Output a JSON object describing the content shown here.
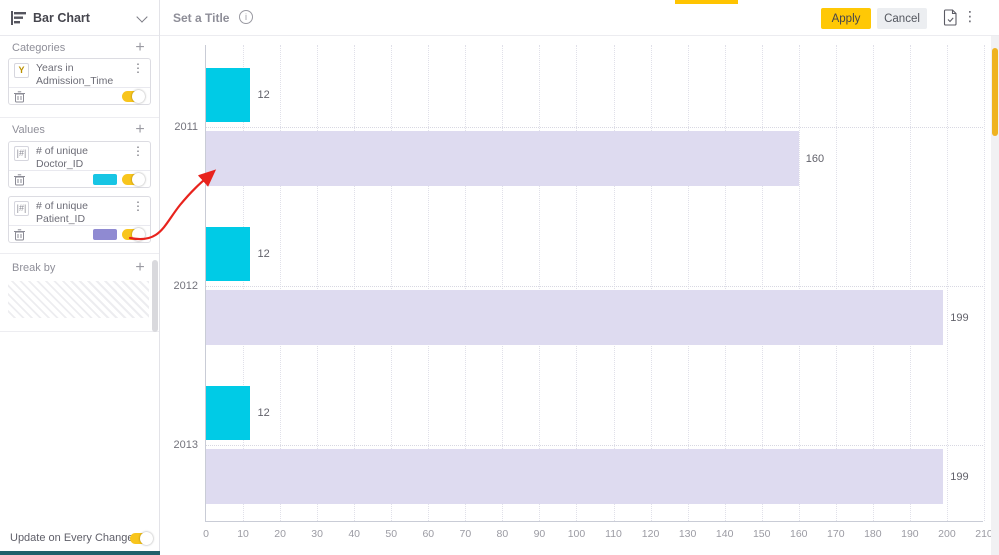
{
  "icons": {
    "kebab": "⋮",
    "plus": "+",
    "info_i": "i"
  },
  "sidebar": {
    "chart_type_label": "Bar Chart",
    "add_label": "+",
    "categories": {
      "label": "Categories",
      "item": {
        "badge": "Y",
        "title": "Years in Admission_Time"
      }
    },
    "values": {
      "label": "Values",
      "items": [
        {
          "badge": "|#|",
          "title": "# of unique Doctor_ID",
          "color": "#17c5e4"
        },
        {
          "badge": "|#|",
          "title": "# of unique Patient_ID",
          "color": "#8f8ad2"
        }
      ]
    },
    "break_by": {
      "label": "Break by"
    },
    "update_toggle_label": "Update on Every Change"
  },
  "header": {
    "title_placeholder": "Set a Title",
    "apply_label": "Apply",
    "cancel_label": "Cancel"
  },
  "chart_data": {
    "type": "bar",
    "orientation": "horizontal",
    "title": "",
    "categories": [
      "2011",
      "2012",
      "2013"
    ],
    "series": [
      {
        "name": "# of unique Doctor_ID",
        "color": "#00cbe6",
        "values": [
          12,
          12,
          12
        ]
      },
      {
        "name": "# of unique Patient_ID",
        "color": "#dedbf0",
        "values": [
          160,
          199,
          199
        ]
      }
    ],
    "xlim": [
      0,
      210
    ],
    "xtick_step": 10,
    "grid": "dotted-vertical",
    "value_labels": true,
    "legend": "none"
  },
  "annotation": {
    "arrow_color": "#e8231d"
  },
  "colors": {
    "accent_yellow": "#ffc805",
    "toggle_yellow": "#f8c51c",
    "loadbar_yellow": "#ffc400",
    "scroll_thumb": "#efb320",
    "bottom_bar_teal": "#20606b"
  }
}
